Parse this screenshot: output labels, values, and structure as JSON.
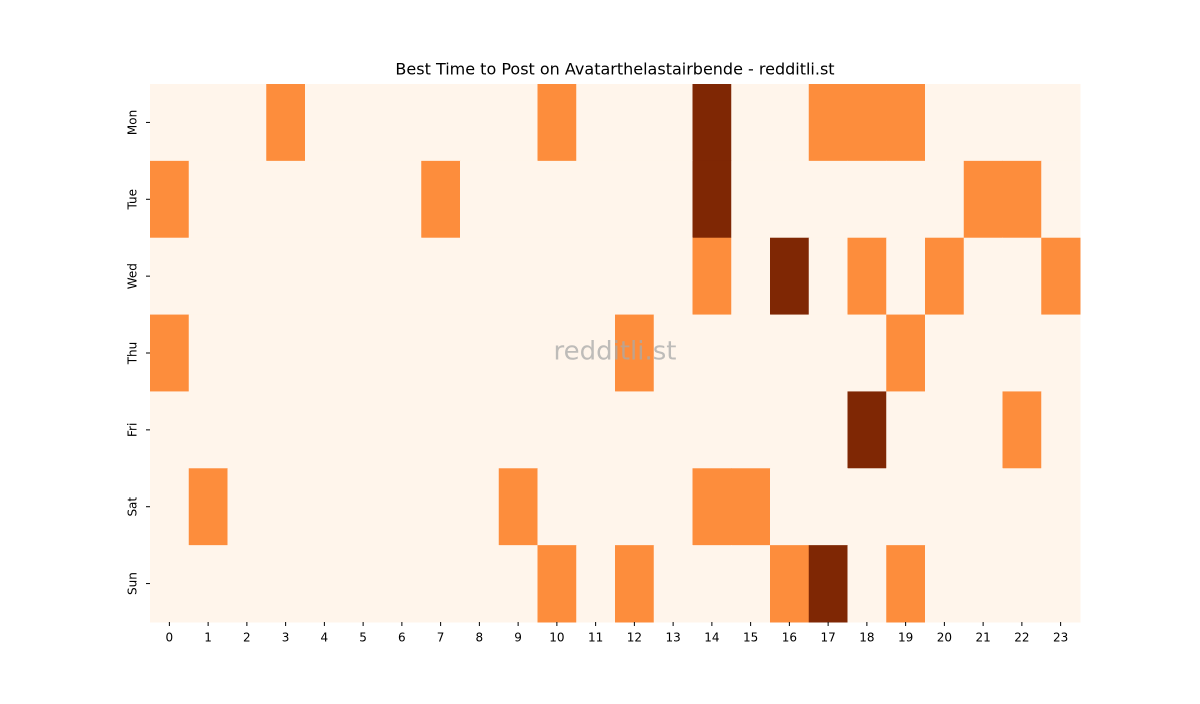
{
  "chart_data": {
    "type": "heatmap",
    "title": "Best Time to Post on Avatarthelastairbende - redditli.st",
    "watermark": "redditli.st",
    "x": [
      0,
      1,
      2,
      3,
      4,
      5,
      6,
      7,
      8,
      9,
      10,
      11,
      12,
      13,
      14,
      15,
      16,
      17,
      18,
      19,
      20,
      21,
      22,
      23
    ],
    "y": [
      "Mon",
      "Tue",
      "Wed",
      "Thu",
      "Fri",
      "Sat",
      "Sun"
    ],
    "values": [
      [
        0,
        0,
        0,
        1,
        0,
        0,
        0,
        0,
        0,
        0,
        1,
        0,
        0,
        0,
        2,
        0,
        0,
        1,
        1,
        1,
        0,
        0,
        0,
        0
      ],
      [
        1,
        0,
        0,
        0,
        0,
        0,
        0,
        1,
        0,
        0,
        0,
        0,
        0,
        0,
        2,
        0,
        0,
        0,
        0,
        0,
        0,
        1,
        1,
        0
      ],
      [
        0,
        0,
        0,
        0,
        0,
        0,
        0,
        0,
        0,
        0,
        0,
        0,
        0,
        0,
        1,
        0,
        2,
        0,
        1,
        0,
        1,
        0,
        0,
        1
      ],
      [
        1,
        0,
        0,
        0,
        0,
        0,
        0,
        0,
        0,
        0,
        0,
        0,
        1,
        0,
        0,
        0,
        0,
        0,
        0,
        1,
        0,
        0,
        0,
        0
      ],
      [
        0,
        0,
        0,
        0,
        0,
        0,
        0,
        0,
        0,
        0,
        0,
        0,
        0,
        0,
        0,
        0,
        0,
        0,
        2,
        0,
        0,
        0,
        1,
        0
      ],
      [
        0,
        1,
        0,
        0,
        0,
        0,
        0,
        0,
        0,
        1,
        0,
        0,
        0,
        0,
        1,
        1,
        0,
        0,
        0,
        0,
        0,
        0,
        0,
        0
      ],
      [
        0,
        0,
        0,
        0,
        0,
        0,
        0,
        0,
        0,
        0,
        1,
        0,
        1,
        0,
        0,
        0,
        1,
        2,
        0,
        1,
        0,
        0,
        0,
        0
      ]
    ],
    "vlim": [
      0,
      2
    ],
    "colormap": [
      "#fff5eb",
      "#fd8d3c",
      "#7f2704"
    ]
  }
}
